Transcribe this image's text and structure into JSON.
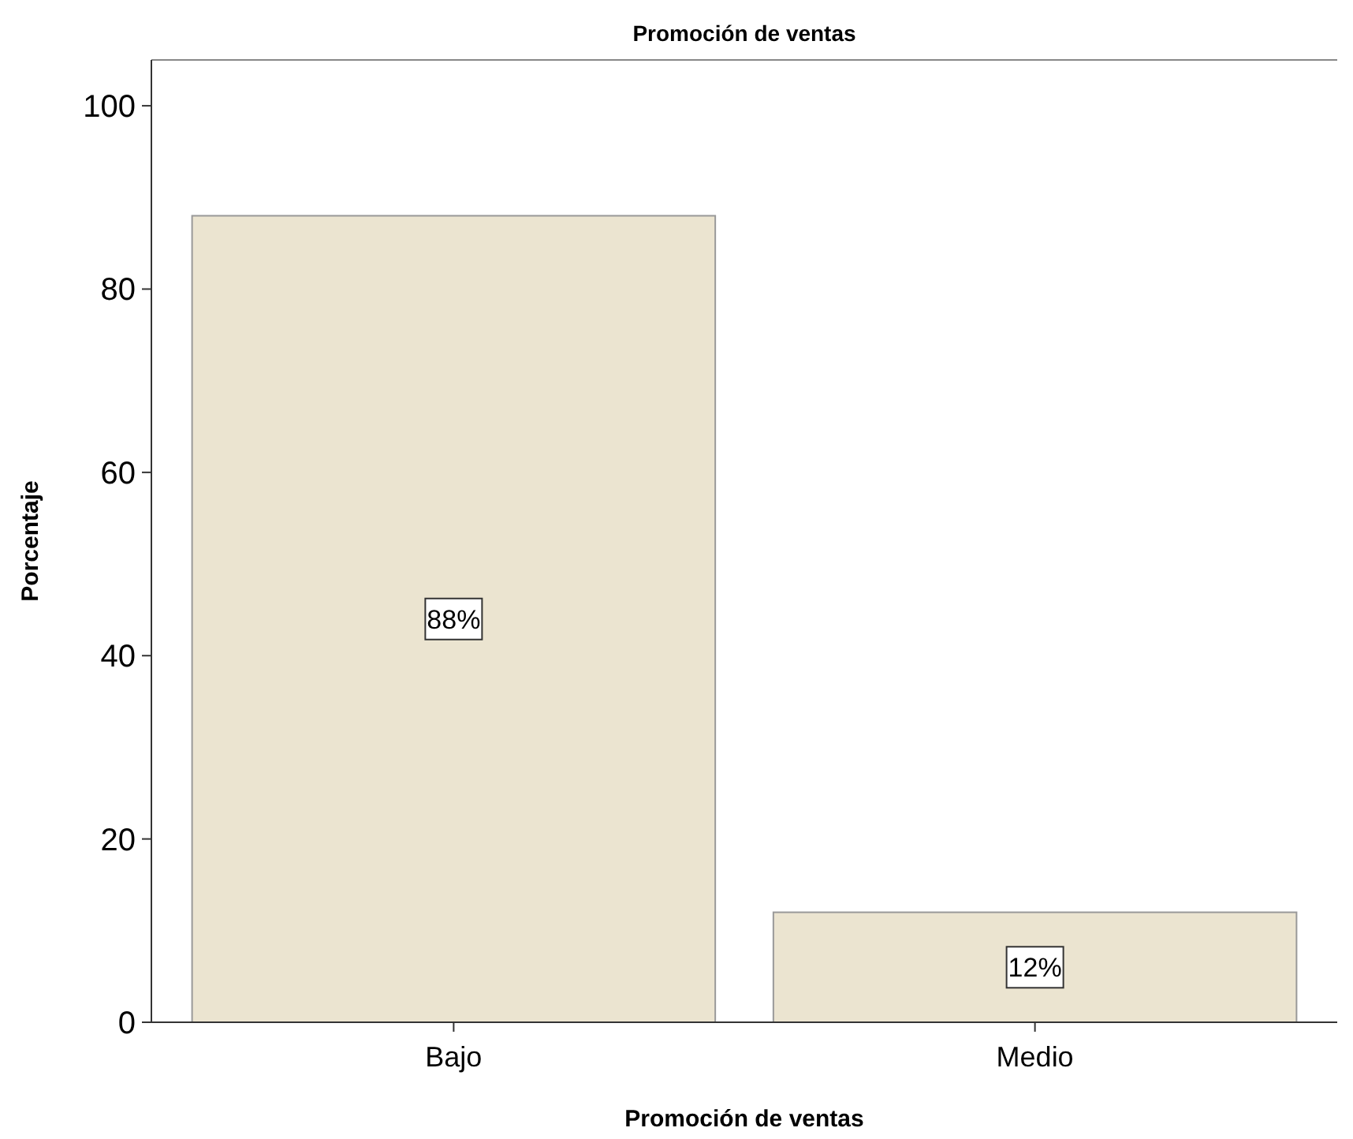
{
  "chart_data": {
    "type": "bar",
    "title": "Promoción de ventas",
    "xlabel": "Promoción de ventas",
    "ylabel": "Porcentaje",
    "categories": [
      "Bajo",
      "Medio"
    ],
    "values": [
      88,
      12
    ],
    "value_labels": [
      "88%",
      "12%"
    ],
    "color": "#ebe4d0",
    "ylim": [
      0,
      105
    ],
    "yticks": [
      0,
      20,
      40,
      60,
      80,
      100
    ],
    "grid": false
  }
}
